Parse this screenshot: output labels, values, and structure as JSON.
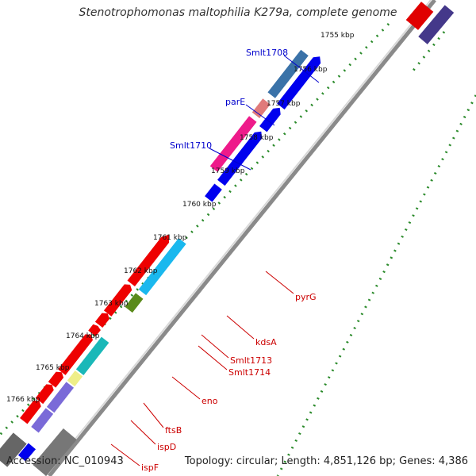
{
  "title": "Stenotrophomonas maltophilia K279a, complete genome",
  "footer": {
    "accession": "Accession: NC_010943",
    "summary": "Topology: circular; Length: 4,851,126 bp; Genes: 4,386"
  },
  "colors": {
    "backbone": "#7a7a7a",
    "dot_track": "#2a8a2a",
    "forward_cds": "#ff0000",
    "reverse_cds": "#0000ee",
    "label_forward": "#cc0000",
    "label_reverse": "#0000cc"
  },
  "ticks": [
    "1755 kbp",
    "1756 kbp",
    "1757 kbp",
    "1758 kbp",
    "1759 kbp",
    "1760 kbp",
    "1761 kbp",
    "1762 kbp",
    "1763 kbp",
    "1764 kbp",
    "1765 kbp",
    "1766 kbp"
  ],
  "labels_reverse": [
    "Smlt1708",
    "parE",
    "Smlt1710"
  ],
  "labels_forward": [
    "pyrG",
    "kdsA",
    "Smlt1713",
    "Smlt1714",
    "eno",
    "ftsB",
    "ispD",
    "ispF"
  ]
}
